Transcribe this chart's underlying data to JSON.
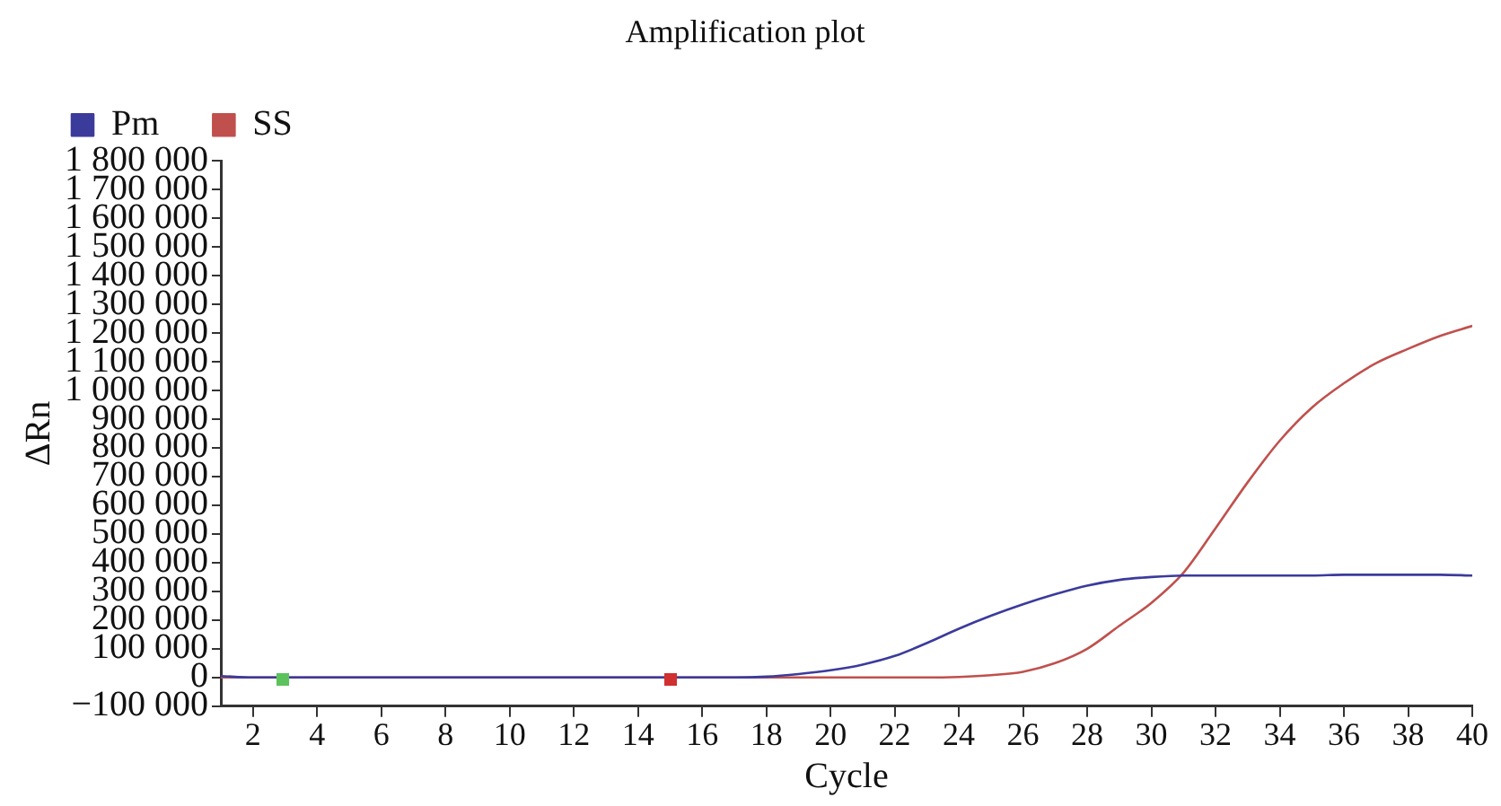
{
  "chart_data": {
    "type": "line",
    "title": "Amplification plot",
    "xlabel": "Cycle",
    "ylabel": "ΔRn",
    "legend": "top left",
    "grid": false,
    "marker": "none",
    "line_style": "solid",
    "x": [
      1,
      2,
      4,
      6,
      8,
      10,
      12,
      14,
      16,
      17,
      18,
      19,
      20,
      21,
      22,
      23,
      24,
      25,
      26,
      27,
      28,
      29,
      30,
      31,
      32,
      33,
      34,
      35,
      36,
      37,
      38,
      39,
      40
    ],
    "series": [
      {
        "name": "Pm",
        "color": "#3b3b9c",
        "values": [
          5000,
          0,
          0,
          0,
          0,
          0,
          0,
          0,
          0,
          0,
          3000,
          12000,
          25000,
          45000,
          75000,
          120000,
          170000,
          215000,
          255000,
          290000,
          320000,
          340000,
          350000,
          355000,
          355000,
          355000,
          355000,
          355000,
          358000,
          358000,
          358000,
          358000,
          355000
        ]
      },
      {
        "name": "SS",
        "color": "#c0504d",
        "values": [
          0,
          0,
          0,
          0,
          0,
          0,
          0,
          0,
          0,
          0,
          0,
          0,
          0,
          0,
          0,
          0,
          2000,
          8000,
          20000,
          50000,
          100000,
          180000,
          260000,
          365000,
          520000,
          680000,
          825000,
          940000,
          1025000,
          1095000,
          1145000,
          1190000,
          1225000
        ]
      }
    ],
    "xlim": [
      1,
      40
    ],
    "xticks": [
      2,
      4,
      6,
      8,
      10,
      12,
      14,
      16,
      18,
      20,
      22,
      24,
      26,
      28,
      30,
      32,
      34,
      36,
      38,
      40
    ],
    "ylim": [
      -100000,
      1800000
    ],
    "yticks": [
      {
        "value": -100000,
        "label": "−100 000"
      },
      0,
      {
        "value": 100000,
        "label": "100 000"
      },
      {
        "value": 200000,
        "label": "200 000"
      },
      {
        "value": 300000,
        "label": "300 000"
      },
      {
        "value": 400000,
        "label": "400 000"
      },
      {
        "value": 500000,
        "label": "500 000"
      },
      {
        "value": 600000,
        "label": "600 000"
      },
      {
        "value": 700000,
        "label": "700 000"
      },
      {
        "value": 800000,
        "label": "800 000"
      },
      {
        "value": 900000,
        "label": "900 000"
      },
      {
        "value": 1000000,
        "label": "1 000 000"
      },
      {
        "value": 1100000,
        "label": "1 100 000"
      },
      {
        "value": 1200000,
        "label": "1 200 000"
      },
      {
        "value": 1300000,
        "label": "1 300 000"
      },
      {
        "value": 1400000,
        "label": "1 400 000"
      },
      {
        "value": 1500000,
        "label": "1 500 000"
      },
      {
        "value": 1600000,
        "label": "1 600 000"
      },
      {
        "value": 1700000,
        "label": "1 700 000"
      },
      {
        "value": 1800000,
        "label": "1 800 000"
      }
    ]
  }
}
